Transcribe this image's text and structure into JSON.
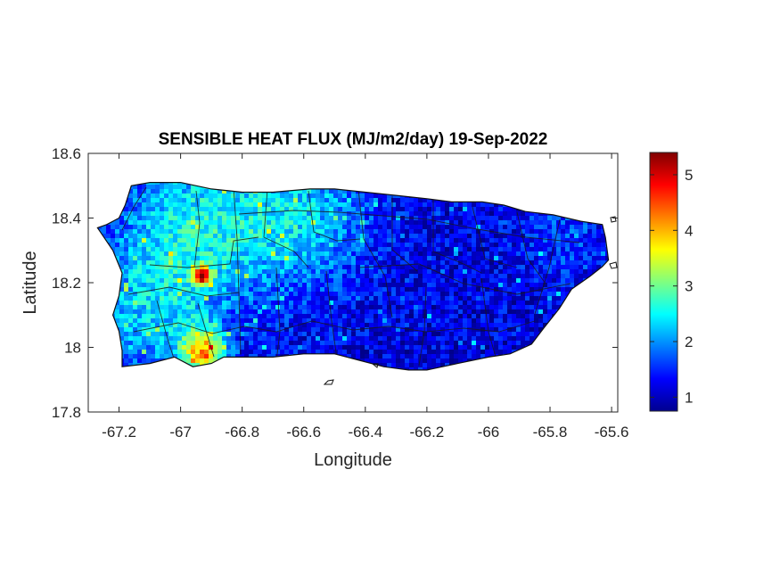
{
  "chart_data": {
    "type": "heatmap",
    "title": "SENSIBLE HEAT FLUX (MJ/m2/day) 19-Sep-2022",
    "xlabel": "Longitude",
    "ylabel": "Latitude",
    "xlim": [
      -67.3,
      -65.58
    ],
    "ylim": [
      17.8,
      18.6
    ],
    "x_ticks": [
      -67.2,
      -67,
      -66.8,
      -66.6,
      -66.4,
      -66.2,
      -66,
      -65.8,
      -65.6
    ],
    "x_tick_labels": [
      "-67.2",
      "-67",
      "-66.8",
      "-66.6",
      "-66.4",
      "-66.2",
      "-66",
      "-65.8",
      "-65.6"
    ],
    "y_ticks": [
      17.8,
      18,
      18.2,
      18.4,
      18.6
    ],
    "y_tick_labels": [
      "17.8",
      "18",
      "18.2",
      "18.4",
      "18.6"
    ],
    "colorbar": {
      "colormap": "jet",
      "range": [
        0.75,
        5.4
      ],
      "ticks": [
        1,
        2,
        3,
        4,
        5
      ],
      "tick_labels": [
        "1",
        "2",
        "3",
        "4",
        "5"
      ]
    },
    "grid": false,
    "region_outline": [
      [
        -67.27,
        18.37
      ],
      [
        -67.24,
        18.38
      ],
      [
        -67.2,
        18.4
      ],
      [
        -67.18,
        18.44
      ],
      [
        -67.16,
        18.5
      ],
      [
        -67.1,
        18.51
      ],
      [
        -67.0,
        18.51
      ],
      [
        -66.9,
        18.49
      ],
      [
        -66.8,
        18.48
      ],
      [
        -66.7,
        18.48
      ],
      [
        -66.58,
        18.49
      ],
      [
        -66.5,
        18.49
      ],
      [
        -66.4,
        18.48
      ],
      [
        -66.3,
        18.47
      ],
      [
        -66.2,
        18.46
      ],
      [
        -66.12,
        18.45
      ],
      [
        -66.02,
        18.45
      ],
      [
        -65.95,
        18.44
      ],
      [
        -65.88,
        18.42
      ],
      [
        -65.79,
        18.41
      ],
      [
        -65.7,
        18.39
      ],
      [
        -65.63,
        18.38
      ],
      [
        -65.62,
        18.34
      ],
      [
        -65.61,
        18.27
      ],
      [
        -65.63,
        18.25
      ],
      [
        -65.67,
        18.22
      ],
      [
        -65.73,
        18.18
      ],
      [
        -65.77,
        18.12
      ],
      [
        -65.82,
        18.06
      ],
      [
        -65.86,
        18.01
      ],
      [
        -65.93,
        17.98
      ],
      [
        -66.0,
        17.97
      ],
      [
        -66.1,
        17.95
      ],
      [
        -66.2,
        17.93
      ],
      [
        -66.26,
        17.93
      ],
      [
        -66.34,
        17.94
      ],
      [
        -66.42,
        17.96
      ],
      [
        -66.5,
        17.98
      ],
      [
        -66.6,
        17.98
      ],
      [
        -66.7,
        17.97
      ],
      [
        -66.8,
        17.97
      ],
      [
        -66.86,
        17.97
      ],
      [
        -66.9,
        17.95
      ],
      [
        -66.96,
        17.94
      ],
      [
        -67.02,
        17.97
      ],
      [
        -67.1,
        17.95
      ],
      [
        -67.19,
        17.94
      ],
      [
        -67.19,
        17.99
      ],
      [
        -67.2,
        18.05
      ],
      [
        -67.22,
        18.1
      ],
      [
        -67.2,
        18.16
      ],
      [
        -67.19,
        18.23
      ],
      [
        -67.22,
        18.3
      ],
      [
        -67.27,
        18.37
      ]
    ],
    "flux_trend": {
      "base": 1.2,
      "peaks": [
        {
          "lon": -66.95,
          "lat": 18.38,
          "value": 2.4,
          "spread": 0.18
        },
        {
          "lon": -66.6,
          "lat": 18.4,
          "value": 2.2,
          "spread": 0.16
        },
        {
          "lon": -67.1,
          "lat": 18.1,
          "value": 2.1,
          "spread": 0.15
        },
        {
          "lon": -66.93,
          "lat": 17.99,
          "value": 3.6,
          "spread": 0.05
        },
        {
          "lon": -66.93,
          "lat": 18.22,
          "value": 4.6,
          "spread": 0.02
        },
        {
          "lon": -65.75,
          "lat": 18.35,
          "value": 1.6,
          "spread": 0.1
        }
      ]
    }
  }
}
